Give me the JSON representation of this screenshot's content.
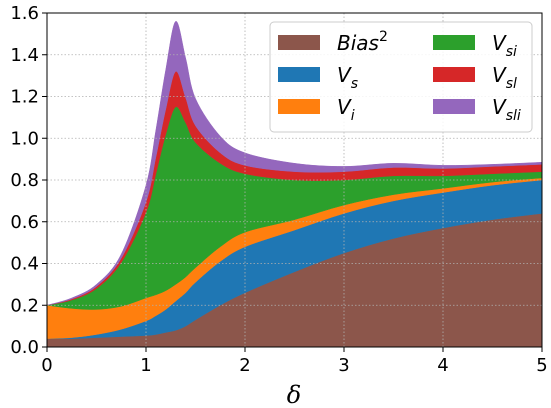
{
  "chart_data": {
    "type": "area",
    "stacked": true,
    "xlabel": "δ",
    "ylabel": "",
    "xlim": [
      0,
      5
    ],
    "ylim": [
      0,
      1.6
    ],
    "xticks": [
      0,
      1,
      2,
      3,
      4,
      5
    ],
    "yticks": [
      0.0,
      0.2,
      0.4,
      0.6,
      0.8,
      1.0,
      1.2,
      1.4,
      1.6
    ],
    "xtick_labels": [
      "0",
      "1",
      "2",
      "3",
      "4",
      "5"
    ],
    "ytick_labels": [
      "0.0",
      "0.2",
      "0.4",
      "0.6",
      "0.8",
      "1.0",
      "1.2",
      "1.4",
      "1.6"
    ],
    "grid": true,
    "legend_position": "top-right",
    "x": [
      0,
      0.25,
      0.5,
      0.75,
      1.0,
      1.1,
      1.2,
      1.3,
      1.4,
      1.5,
      1.75,
      2.0,
      2.5,
      3.0,
      3.5,
      4.0,
      4.5,
      5.0
    ],
    "series": [
      {
        "name": "Bias",
        "sup": "2",
        "sub": "",
        "color": "#8c564b",
        "values": [
          0.04,
          0.04,
          0.045,
          0.05,
          0.055,
          0.06,
          0.07,
          0.08,
          0.1,
          0.13,
          0.2,
          0.26,
          0.36,
          0.45,
          0.52,
          0.57,
          0.61,
          0.64
        ]
      },
      {
        "name": "V",
        "sup": "",
        "sub": "s",
        "color": "#1f77b4",
        "values": [
          0.0,
          0.005,
          0.015,
          0.035,
          0.07,
          0.09,
          0.11,
          0.14,
          0.16,
          0.18,
          0.21,
          0.22,
          0.2,
          0.19,
          0.18,
          0.17,
          0.165,
          0.16
        ]
      },
      {
        "name": "V",
        "sup": "",
        "sub": "i",
        "color": "#ff7f0e",
        "values": [
          0.16,
          0.14,
          0.12,
          0.11,
          0.11,
          0.1,
          0.09,
          0.08,
          0.075,
          0.07,
          0.07,
          0.07,
          0.05,
          0.04,
          0.03,
          0.02,
          0.015,
          0.01
        ]
      },
      {
        "name": "V",
        "sup": "",
        "sub": "si",
        "color": "#2ca02c",
        "values": [
          0.0,
          0.04,
          0.1,
          0.21,
          0.41,
          0.58,
          0.75,
          0.85,
          0.74,
          0.6,
          0.4,
          0.28,
          0.19,
          0.12,
          0.09,
          0.06,
          0.04,
          0.03
        ]
      },
      {
        "name": "V",
        "sup": "",
        "sub": "sl",
        "color": "#d62728",
        "values": [
          0.0,
          0.005,
          0.01,
          0.02,
          0.05,
          0.08,
          0.12,
          0.17,
          0.12,
          0.08,
          0.05,
          0.04,
          0.04,
          0.04,
          0.04,
          0.035,
          0.035,
          0.035
        ]
      },
      {
        "name": "V",
        "sup": "",
        "sub": "sli",
        "color": "#9467bd",
        "values": [
          0.0,
          0.005,
          0.01,
          0.02,
          0.08,
          0.13,
          0.19,
          0.24,
          0.19,
          0.13,
          0.08,
          0.06,
          0.04,
          0.025,
          0.02,
          0.015,
          0.01,
          0.01
        ]
      }
    ]
  }
}
